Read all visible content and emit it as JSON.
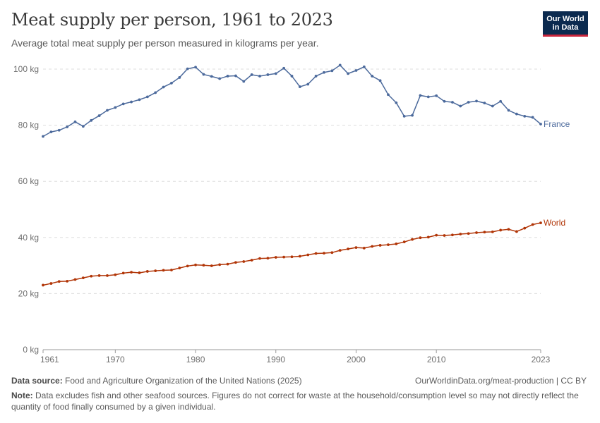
{
  "header": {
    "title": "Meat supply per person, 1961 to 2023",
    "subtitle": "Average total meat supply per person measured in kilograms per year."
  },
  "logo": {
    "line1": "Our World",
    "line2": "in Data"
  },
  "footer": {
    "source_label": "Data source:",
    "source_text": "Food and Agriculture Organization of the United Nations (2025)",
    "credit": "OurWorldinData.org/meat-production | CC BY",
    "note_label": "Note:",
    "note_text": "Data excludes fish and other seafood sources. Figures do not correct for waste at the household/consumption level so may not directly reflect the quantity of food finally consumed by a given individual."
  },
  "colors": {
    "France": "#4c6a9c",
    "World": "#b13507",
    "grid": "#dddddd",
    "axis": "#999999"
  },
  "chart_data": {
    "type": "line",
    "title": "Meat supply per person, 1961 to 2023",
    "xlim": [
      1961,
      2023
    ],
    "ylim": [
      0,
      100
    ],
    "y_ticks": [
      0,
      20,
      40,
      60,
      80,
      100
    ],
    "y_tick_labels": [
      "0 kg",
      "20 kg",
      "40 kg",
      "60 kg",
      "80 kg",
      "100 kg"
    ],
    "x_ticks": [
      1961,
      1970,
      1980,
      1990,
      2000,
      2010,
      2023
    ],
    "x_tick_labels": [
      "1961",
      "1970",
      "1980",
      "1990",
      "2000",
      "2010",
      "2023"
    ],
    "grid": "horizontal dashed",
    "legend": "labels at line ends (right)",
    "x": [
      1961,
      1962,
      1963,
      1964,
      1965,
      1966,
      1967,
      1968,
      1969,
      1970,
      1971,
      1972,
      1973,
      1974,
      1975,
      1976,
      1977,
      1978,
      1979,
      1980,
      1981,
      1982,
      1983,
      1984,
      1985,
      1986,
      1987,
      1988,
      1989,
      1990,
      1991,
      1992,
      1993,
      1994,
      1995,
      1996,
      1997,
      1998,
      1999,
      2000,
      2001,
      2002,
      2003,
      2004,
      2005,
      2006,
      2007,
      2008,
      2009,
      2010,
      2011,
      2012,
      2013,
      2014,
      2015,
      2016,
      2017,
      2018,
      2019,
      2020,
      2021,
      2022,
      2023
    ],
    "series": [
      {
        "name": "France",
        "values": [
          76.0,
          77.6,
          78.2,
          79.4,
          81.2,
          79.6,
          81.7,
          83.4,
          85.3,
          86.3,
          87.6,
          88.3,
          89.1,
          90.1,
          91.6,
          93.6,
          95.0,
          97.0,
          100.1,
          100.7,
          98.1,
          97.4,
          96.6,
          97.5,
          97.6,
          95.6,
          98.0,
          97.5,
          98.0,
          98.4,
          100.3,
          97.5,
          93.7,
          94.6,
          97.5,
          98.8,
          99.4,
          101.4,
          98.4,
          99.5,
          100.8,
          97.5,
          95.9,
          90.9,
          88.0,
          83.2,
          83.5,
          90.6,
          90.1,
          90.5,
          88.5,
          88.2,
          86.8,
          88.2,
          88.6,
          87.9,
          86.8,
          88.5,
          85.3,
          84.0,
          83.2,
          82.8,
          80.4
        ]
      },
      {
        "name": "World",
        "values": [
          23.0,
          23.6,
          24.3,
          24.4,
          25.0,
          25.6,
          26.2,
          26.4,
          26.4,
          26.7,
          27.3,
          27.6,
          27.4,
          27.9,
          28.1,
          28.3,
          28.4,
          29.1,
          29.8,
          30.2,
          30.1,
          29.9,
          30.3,
          30.5,
          31.1,
          31.4,
          31.9,
          32.5,
          32.6,
          32.9,
          33.0,
          33.1,
          33.3,
          33.8,
          34.3,
          34.4,
          34.6,
          35.4,
          35.9,
          36.4,
          36.2,
          36.8,
          37.2,
          37.4,
          37.7,
          38.4,
          39.3,
          39.9,
          40.1,
          40.8,
          40.7,
          40.9,
          41.2,
          41.4,
          41.7,
          41.9,
          42.0,
          42.6,
          42.9,
          42.1,
          43.3,
          44.6,
          45.2
        ]
      }
    ]
  }
}
